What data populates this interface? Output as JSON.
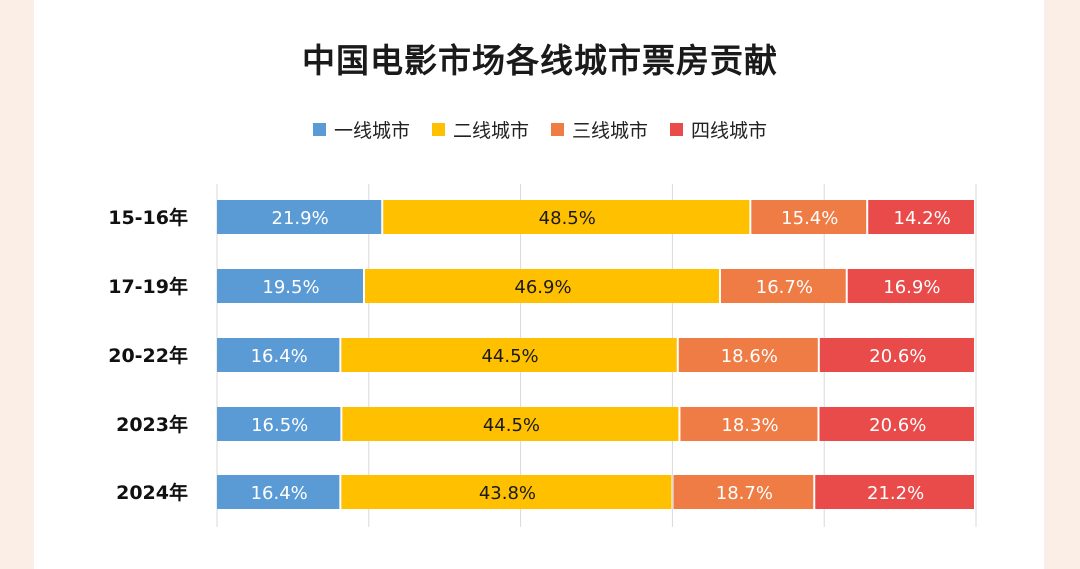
{
  "chart_data": {
    "type": "bar",
    "stacked": true,
    "normalized": true,
    "orientation": "horizontal",
    "title": "中国电影市场各线城市票房贡献",
    "legend_position": "top-center",
    "grid": true,
    "xlim": [
      0,
      100
    ],
    "categories": [
      "15-16年",
      "17-19年",
      "20-22年",
      "2023年",
      "2024年"
    ],
    "series": [
      {
        "name": "一线城市",
        "color": "#5b9bd5",
        "values": [
          21.9,
          19.5,
          16.4,
          16.5,
          16.4
        ]
      },
      {
        "name": "二线城市",
        "color": "#ffc000",
        "values": [
          48.5,
          46.9,
          44.5,
          44.5,
          43.8
        ]
      },
      {
        "name": "三线城市",
        "color": "#ef7b45",
        "values": [
          15.4,
          16.7,
          18.6,
          18.3,
          18.7
        ]
      },
      {
        "name": "四线城市",
        "color": "#e94a4a",
        "values": [
          14.2,
          16.9,
          20.6,
          20.6,
          21.2
        ]
      }
    ],
    "value_labels": [
      [
        "21.9%",
        "19.5%",
        "16.4%",
        "16.5%",
        "16.4%"
      ],
      [
        "48.5%",
        "46.9%",
        "44.5%",
        "44.5%",
        "43.8%"
      ],
      [
        "15.4%",
        "16.7%",
        "18.6%",
        "18.3%",
        "18.7%"
      ],
      [
        "14.2%",
        "16.9%",
        "20.6%",
        "20.6%",
        "21.2%"
      ]
    ],
    "label_colors": [
      "#ffffff",
      "#1a1a1a",
      "#ffffff",
      "#ffffff"
    ]
  }
}
